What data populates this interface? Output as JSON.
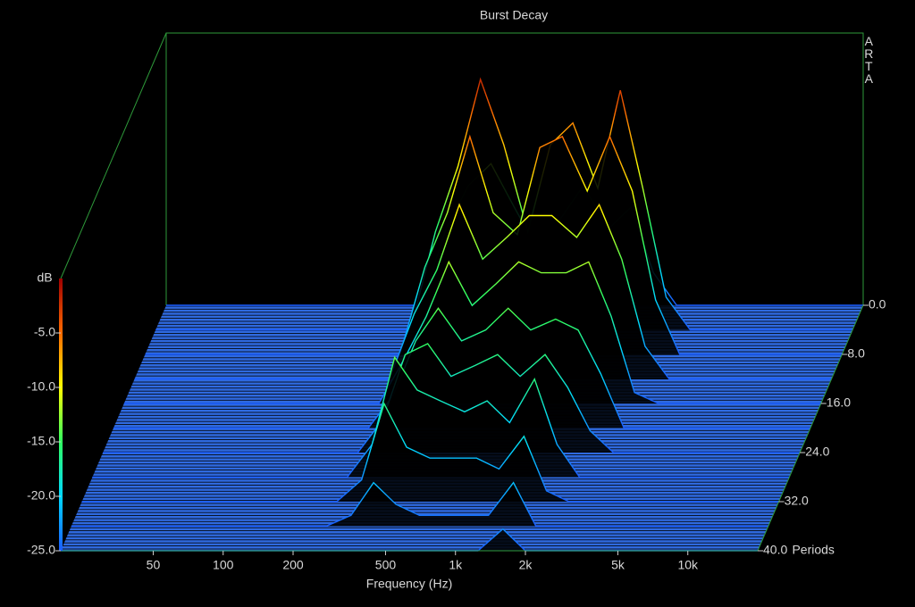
{
  "chart_data": {
    "type": "waterfall",
    "title": "Burst Decay",
    "watermark": "ARTA",
    "x_label": "Frequency (Hz)",
    "y_label": "Periods",
    "z_label": "dB",
    "xscale": "log",
    "xlim": [
      20,
      20000
    ],
    "xticks": [
      50,
      100,
      200,
      500,
      {
        "value": 1000,
        "label": "1k"
      },
      {
        "value": 2000,
        "label": "2k"
      },
      {
        "value": 5000,
        "label": "5k"
      },
      {
        "value": 10000,
        "label": "10k"
      }
    ],
    "ylim": [
      0,
      40
    ],
    "yticks": [
      {
        "value": 0,
        "label": "0.0"
      },
      {
        "value": 8,
        "label": "8.0"
      },
      {
        "value": 16,
        "label": "16.0"
      },
      {
        "value": 24,
        "label": "24.0"
      },
      {
        "value": 32,
        "label": "32.0"
      },
      {
        "value": 40,
        "label": "40.0"
      }
    ],
    "zlim": [
      -25,
      0
    ],
    "zticks": [
      {
        "value": -5,
        "label": "-5.0"
      },
      {
        "value": -10,
        "label": "-10.0"
      },
      {
        "value": -15,
        "label": "-15.0"
      },
      {
        "value": -20,
        "label": "-20.0"
      },
      {
        "value": -25,
        "label": "-25.0"
      }
    ],
    "colorscale": [
      "#1a5cff",
      "#00d8ff",
      "#30ff60",
      "#ffff00",
      "#ff6a00",
      "#a00000"
    ],
    "floor_color": "#2f6ae0",
    "frame_color": "#2e9a3a",
    "x": [
      20,
      250,
      320,
      400,
      500,
      630,
      800,
      1000,
      1250,
      1600,
      2000,
      2500,
      3150,
      4000,
      20000
    ],
    "slices": [
      {
        "period": 0,
        "values": [
          -25,
          -25,
          -18,
          -14,
          -12,
          -16,
          -20,
          -17,
          -14,
          -18,
          -16,
          -22,
          -25,
          -25,
          -25
        ]
      },
      {
        "period": 4,
        "values": [
          -25,
          -25,
          -16,
          -10,
          -2,
          -8,
          -16,
          -8,
          -6,
          -12,
          -3,
          -12,
          -22,
          -25,
          -25
        ]
      },
      {
        "period": 8,
        "values": [
          -25,
          -25,
          -17,
          -12,
          -5,
          -12,
          -14,
          -6,
          -5,
          -10,
          -5,
          -10,
          -20,
          -25,
          -25
        ]
      },
      {
        "period": 12,
        "values": [
          -25,
          -25,
          -19,
          -15,
          -9,
          -14,
          -12,
          -10,
          -10,
          -12,
          -9,
          -14,
          -22,
          -25,
          -25
        ]
      },
      {
        "period": 16,
        "values": [
          -25,
          -25,
          -21,
          -17,
          -12,
          -16,
          -14,
          -12,
          -13,
          -13,
          -12,
          -17,
          -24,
          -25,
          -25
        ]
      },
      {
        "period": 20,
        "values": [
          -25,
          -25,
          -22,
          -17,
          -14,
          -17,
          -16,
          -14,
          -16,
          -15,
          -16,
          -20,
          -25,
          -25,
          -25
        ]
      },
      {
        "period": 24,
        "values": [
          -25,
          -25,
          -22,
          -16,
          -15,
          -18,
          -17,
          -16,
          -18,
          -16,
          -19,
          -23,
          -25,
          -25,
          -25
        ]
      },
      {
        "period": 28,
        "values": [
          -25,
          -25,
          -22,
          -14,
          -17,
          -18,
          -19,
          -18,
          -20,
          -16,
          -22,
          -25,
          -25,
          -25,
          -25
        ]
      },
      {
        "period": 32,
        "values": [
          -25,
          -25,
          -23,
          -16,
          -20,
          -21,
          -21,
          -21,
          -22,
          -19,
          -24,
          -25,
          -25,
          -25,
          -25
        ]
      },
      {
        "period": 36,
        "values": [
          -25,
          -25,
          -24,
          -21,
          -23,
          -24,
          -24,
          -24,
          -24,
          -21,
          -25,
          -25,
          -25,
          -25,
          -25
        ]
      },
      {
        "period": 40,
        "values": [
          -25,
          -25,
          -25,
          -25,
          -25,
          -25,
          -25,
          -25,
          -25,
          -23,
          -25,
          -25,
          -25,
          -25,
          -25
        ]
      }
    ]
  }
}
